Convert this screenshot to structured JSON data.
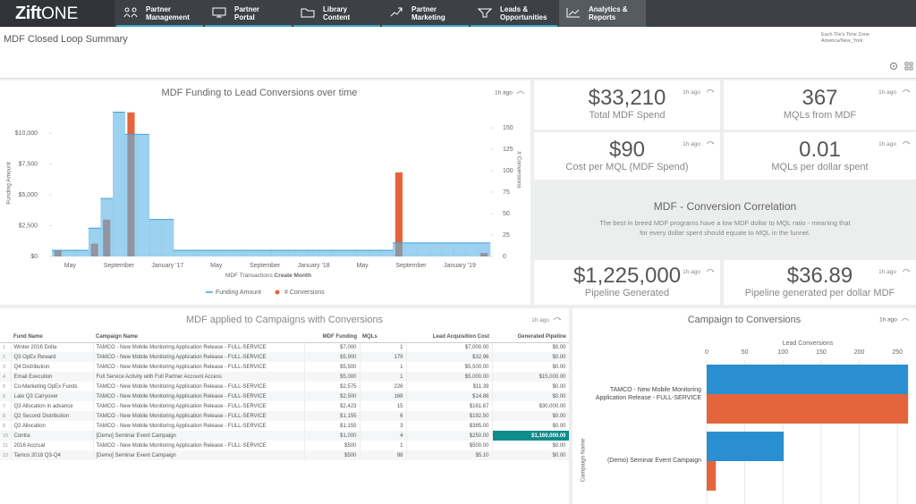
{
  "nav": {
    "logo": [
      "Zift",
      "ONE"
    ],
    "items": [
      [
        "Partner",
        "Management"
      ],
      [
        "Partner",
        "Portal"
      ],
      [
        "Library",
        "Content"
      ],
      [
        "Partner",
        "Marketing"
      ],
      [
        "Leads &",
        "Opportunities"
      ],
      [
        "Analytics &",
        "Reports"
      ]
    ]
  },
  "header": {
    "title": "MDF Closed Loop Summary",
    "timezone_label": "Each Tile's Time Zone",
    "timezone": "America/New_York"
  },
  "kpis": [
    {
      "value": "$33,210",
      "label": "Total MDF Spend",
      "updated": "1h ago"
    },
    {
      "value": "367",
      "label": "MQLs from MDF",
      "updated": "1h ago"
    },
    {
      "value": "$90",
      "label": "Cost per MQL (MDF Spend)",
      "updated": "1h ago"
    },
    {
      "value": "0.01",
      "label": "MQLs per dollar spent",
      "updated": "1h ago"
    },
    {
      "value": "$1,225,000",
      "label": "Pipeline Generated",
      "updated": "1h ago"
    },
    {
      "value": "$36.89",
      "label": "Pipeline generated per dollar MDF",
      "updated": "1h ago"
    }
  ],
  "correlation": {
    "title": "MDF - Conversion Correlation",
    "text": "The best in breed MDF programs have a low MDF dollar to MQL ratio - meaning that for every dollar spent should equate to MQL in the funnel."
  },
  "table": {
    "title": "MDF applied to Campaigns with Conversions",
    "updated": "1h ago",
    "columns": [
      "Fund Name",
      "Campaign Name",
      "MDF Funding",
      "MQLs",
      "Lead Acquisition Cost",
      "Generated Pipeline"
    ],
    "rows": [
      [
        1,
        "Winter 2016 Dolla",
        "TAMCO - New Mobile Monitoring Application Release - FULL-SERVICE",
        "$7,000",
        1,
        "$7,000.00",
        "$0.00"
      ],
      [
        2,
        "Q3 OpEx Reward",
        "TAMCO - New Mobile Monitoring Application Release - FULL-SERVICE",
        "$5,900",
        179,
        "$32.96",
        "$0.00"
      ],
      [
        3,
        "Q4 Distribution",
        "TAMCO - New Mobile Monitoring Application Release - FULL-SERVICE",
        "$5,500",
        1,
        "$5,500.00",
        "$0.00"
      ],
      [
        4,
        "Email Execution",
        "Full Service Activity with Full Partner Account Access",
        "$5,000",
        1,
        "$5,000.00",
        "$15,000.00"
      ],
      [
        5,
        "Co-Marketing OpEx Funds",
        "TAMCO - New Mobile Monitoring Application Release - FULL-SERVICE",
        "$2,575",
        226,
        "$11.39",
        "$0.00"
      ],
      [
        6,
        "Late Q3 Carryover",
        "TAMCO - New Mobile Monitoring Application Release - FULL-SERVICE",
        "$2,500",
        168,
        "$14.88",
        "$0.00"
      ],
      [
        7,
        "Q3 Allocation in advance",
        "TAMCO - New Mobile Monitoring Application Release - FULL-SERVICE",
        "$2,423",
        15,
        "$161.67",
        "$30,000.00"
      ],
      [
        8,
        "Q2 Second Distribution",
        "TAMCO - New Mobile Monitoring Application Release - FULL-SERVICE",
        "$1,155",
        6,
        "$192.50",
        "$0.00"
      ],
      [
        9,
        "Q2 Allocation",
        "TAMCO - New Mobile Monitoring Application Release - FULL-SERVICE",
        "$1,155",
        3,
        "$385.00",
        "$0.00"
      ],
      [
        10,
        "Contra",
        "[Demo] Seminar Event Campaign",
        "$1,000",
        4,
        "$250.00",
        "$1,160,000.00"
      ],
      [
        11,
        "2016 Accrual",
        "TAMCO - New Mobile Monitoring Application Release - FULL-SERVICE",
        "$500",
        1,
        "$500.00",
        "$0.00"
      ],
      [
        12,
        "Tamco 2018 Q3-Q4",
        "[Demo] Seminar Event Campaign",
        "$500",
        98,
        "$5.10",
        "$0.00"
      ]
    ]
  },
  "chart_data": [
    {
      "type": "combo",
      "title": "MDF Funding to Lead Conversions over time",
      "updated": "1h ago",
      "x_label": [
        "MDF Transactions",
        "Create Month"
      ],
      "y_label": "Funding Amount",
      "y2_label": "# Conversions",
      "categories": [
        null,
        "May",
        null,
        null,
        null,
        "September",
        null,
        null,
        null,
        "January '17",
        null,
        null,
        null,
        "May",
        null,
        null,
        null,
        "September",
        null,
        null,
        null,
        "January '18",
        null,
        null,
        null,
        "May",
        null,
        null,
        null,
        "September",
        null,
        null,
        null,
        "January '19",
        null,
        null
      ],
      "series": [
        {
          "name": "Funding Amount",
          "color": "#5ab4e5",
          "values": [
            500,
            500,
            500,
            2300,
            4700,
            11700,
            9900,
            9900,
            3000,
            3000,
            500,
            500,
            500,
            500,
            500,
            500,
            500,
            500,
            500,
            500,
            500,
            500,
            500,
            500,
            500,
            500,
            500,
            500,
            1100,
            1100,
            1100,
            1100,
            1100,
            1100,
            1100,
            1100
          ]
        },
        {
          "name": "# Conversions",
          "color": "#e4643c",
          "axis": "y2",
          "values": [
            7,
            0,
            0,
            15,
            43,
            0,
            168,
            0,
            0,
            0,
            0,
            0,
            0,
            0,
            0,
            0,
            0,
            0,
            0,
            0,
            0,
            0,
            0,
            0,
            0,
            0,
            0,
            0,
            98,
            0,
            0,
            0,
            0,
            0,
            0,
            4
          ]
        }
      ],
      "ylim": [
        0,
        12100
      ],
      "yticks": [
        {
          "value": 0,
          "label": "$0"
        },
        {
          "value": 2500,
          "label": "$2,500"
        },
        {
          "value": 5000,
          "label": "$5,000"
        },
        {
          "value": 7500,
          "label": "$7,500"
        },
        {
          "value": 10000,
          "label": "$10,000"
        }
      ],
      "y2lim": [
        0,
        174
      ],
      "y2ticks": [
        0,
        25,
        50,
        75,
        100,
        125,
        150
      ],
      "grid": false,
      "legend": "bottom"
    },
    {
      "type": "hbar",
      "title": "Campaign to Conversions",
      "updated": "1h ago",
      "x_label": "Lead Conversions",
      "y_label": "Campaign Name",
      "categories": [
        "TAMCO - New Mobile Monitoring Application Release - FULL-SERVICE",
        "(Demo) Seminar Event Campaign"
      ],
      "series": [
        {
          "color": "#2a8fd0",
          "values": [
            264,
            101
          ]
        },
        {
          "color": "#e4643c",
          "values": [
            264,
            12
          ]
        }
      ],
      "xlim": [
        0,
        265
      ],
      "xticks": [
        0,
        50,
        100,
        150,
        200,
        250
      ],
      "grid": true
    }
  ]
}
